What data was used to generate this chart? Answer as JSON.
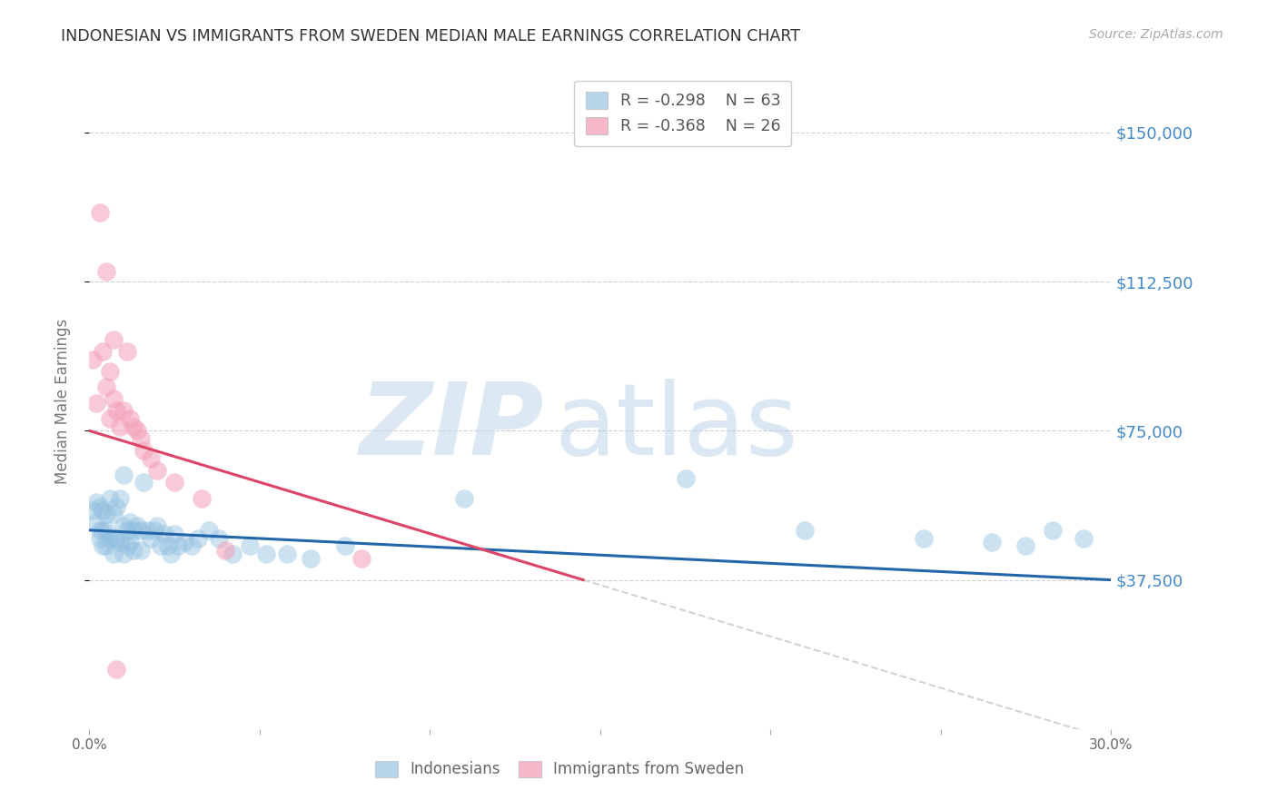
{
  "title": "INDONESIAN VS IMMIGRANTS FROM SWEDEN MEDIAN MALE EARNINGS CORRELATION CHART",
  "source": "Source: ZipAtlas.com",
  "ylabel": "Median Male Earnings",
  "xlim": [
    0.0,
    0.3
  ],
  "ylim": [
    0,
    165000
  ],
  "yticks": [
    37500,
    75000,
    112500,
    150000
  ],
  "ytick_labels": [
    "$37,500",
    "$75,000",
    "$112,500",
    "$150,000"
  ],
  "xticks": [
    0.0,
    0.05,
    0.1,
    0.15,
    0.2,
    0.25,
    0.3
  ],
  "xtick_labels": [
    "0.0%",
    "",
    "",
    "",
    "",
    "",
    "30.0%"
  ],
  "legend1_r": "R = -0.298",
  "legend1_n": "N = 63",
  "legend2_r": "R = -0.368",
  "legend2_n": "N = 26",
  "blue_color": "#92c0e0",
  "pink_color": "#f4a0b8",
  "trend_blue": "#2266aa",
  "trend_pink": "#dd4466",
  "trend_gray": "#cccccc",
  "right_label_color": "#4488cc",
  "watermark_zip_color": "#c8dcf0",
  "watermark_atlas_color": "#b8cce8",
  "indonesians_x": [
    0.001,
    0.002,
    0.002,
    0.003,
    0.003,
    0.003,
    0.004,
    0.004,
    0.004,
    0.005,
    0.005,
    0.005,
    0.006,
    0.006,
    0.007,
    0.007,
    0.007,
    0.008,
    0.008,
    0.009,
    0.009,
    0.01,
    0.01,
    0.01,
    0.011,
    0.011,
    0.012,
    0.012,
    0.013,
    0.013,
    0.014,
    0.015,
    0.015,
    0.016,
    0.017,
    0.018,
    0.019,
    0.02,
    0.021,
    0.022,
    0.023,
    0.024,
    0.025,
    0.026,
    0.028,
    0.03,
    0.032,
    0.035,
    0.038,
    0.042,
    0.047,
    0.052,
    0.058,
    0.065,
    0.075,
    0.11,
    0.175,
    0.21,
    0.245,
    0.265,
    0.275,
    0.283,
    0.292
  ],
  "indonesians_y": [
    55000,
    57000,
    52000,
    56000,
    50000,
    48000,
    55000,
    50000,
    46000,
    54000,
    50000,
    46000,
    58000,
    48000,
    54000,
    48000,
    44000,
    56000,
    48000,
    58000,
    47000,
    64000,
    51000,
    44000,
    50000,
    46000,
    52000,
    47000,
    50000,
    45000,
    51000,
    50000,
    45000,
    62000,
    50000,
    48000,
    50000,
    51000,
    46000,
    49000,
    46000,
    44000,
    49000,
    46000,
    47000,
    46000,
    48000,
    50000,
    48000,
    44000,
    46000,
    44000,
    44000,
    43000,
    46000,
    58000,
    63000,
    50000,
    48000,
    47000,
    46000,
    50000,
    48000
  ],
  "sweden_x": [
    0.001,
    0.002,
    0.003,
    0.004,
    0.005,
    0.005,
    0.006,
    0.006,
    0.007,
    0.007,
    0.008,
    0.009,
    0.01,
    0.011,
    0.012,
    0.013,
    0.014,
    0.015,
    0.016,
    0.018,
    0.02,
    0.025,
    0.033,
    0.04,
    0.08,
    0.008
  ],
  "sweden_y": [
    93000,
    82000,
    130000,
    95000,
    115000,
    86000,
    90000,
    78000,
    98000,
    83000,
    80000,
    76000,
    80000,
    95000,
    78000,
    76000,
    75000,
    73000,
    70000,
    68000,
    65000,
    62000,
    58000,
    45000,
    43000,
    15000
  ]
}
